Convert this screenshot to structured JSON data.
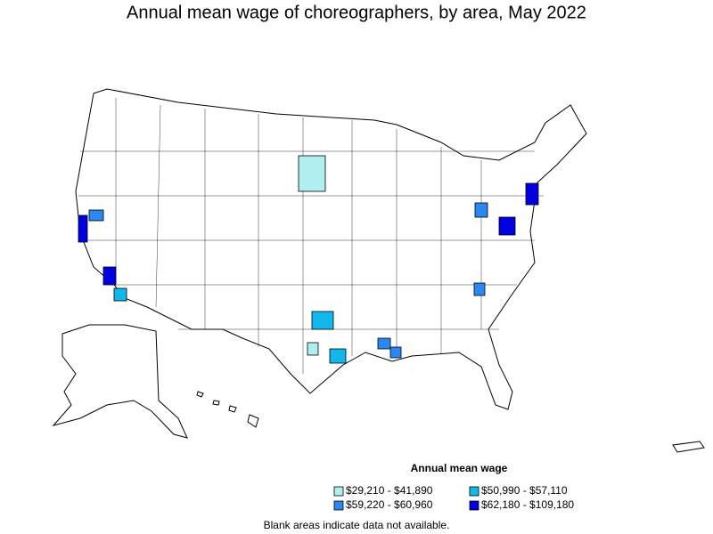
{
  "title": "Annual mean wage of choreographers, by area, May 2022",
  "legend": {
    "title": "Annual mean wage",
    "items": [
      {
        "label": "$29,210 - $41,890",
        "color": "#b0eef0"
      },
      {
        "label": "$50,990 - $57,110",
        "color": "#10b8ec"
      },
      {
        "label": "$59,220 - $60,960",
        "color": "#2a88f0"
      },
      {
        "label": "$62,180 - $109,180",
        "color": "#0000e0"
      }
    ]
  },
  "note": "Blank areas indicate data not available."
}
